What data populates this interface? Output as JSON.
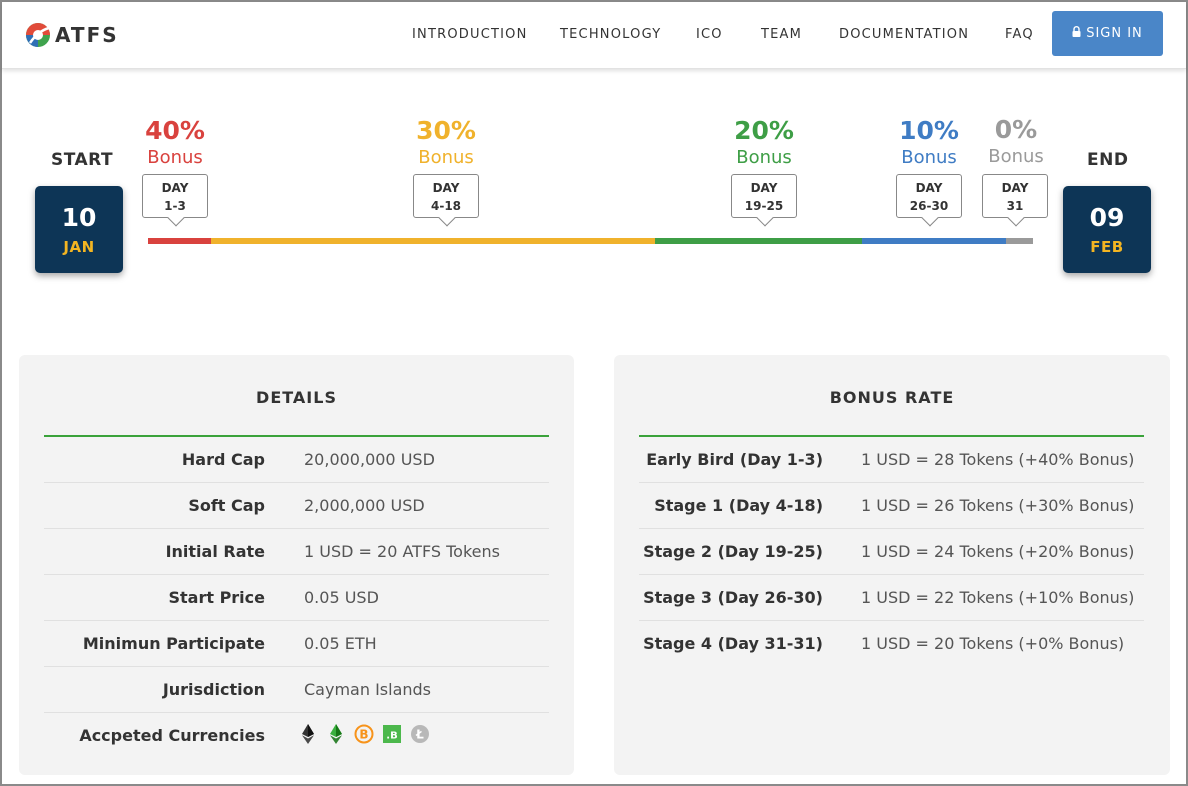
{
  "header": {
    "logo_text": "ATFS",
    "nav": [
      "INTRODUCTION",
      "TECHNOLOGY",
      "ICO",
      "TEAM",
      "DOCUMENTATION",
      "FAQ"
    ],
    "signin_label": "SIGN IN"
  },
  "timeline": {
    "start_label": "START",
    "end_label": "END",
    "start": {
      "day": "10",
      "month": "JAN"
    },
    "end": {
      "day": "09",
      "month": "FEB"
    },
    "stages": [
      {
        "pct": "40%",
        "word": "Bonus",
        "day_line1": "DAY",
        "day_line2": "1-3",
        "color": "#d9423e"
      },
      {
        "pct": "30%",
        "word": "Bonus",
        "day_line1": "DAY",
        "day_line2": "4-18",
        "color": "#f0b22c"
      },
      {
        "pct": "20%",
        "word": "Bonus",
        "day_line1": "DAY",
        "day_line2": "19-25",
        "color": "#3e9e46"
      },
      {
        "pct": "10%",
        "word": "Bonus",
        "day_line1": "DAY",
        "day_line2": "26-30",
        "color": "#3f7cc4"
      },
      {
        "pct": "0%",
        "word": "Bonus",
        "day_line1": "DAY",
        "day_line2": "31",
        "color": "#9a9a9a"
      }
    ]
  },
  "details": {
    "title": "DETAILS",
    "rows": [
      {
        "label": "Hard Cap",
        "value": "20,000,000 USD"
      },
      {
        "label": "Soft Cap",
        "value": "2,000,000 USD"
      },
      {
        "label": "Initial Rate",
        "value": "1 USD = 20 ATFS Tokens"
      },
      {
        "label": "Start Price",
        "value": "0.05 USD"
      },
      {
        "label": "Minimun Participate",
        "value": "0.05 ETH"
      },
      {
        "label": "Jurisdiction",
        "value": "Cayman Islands"
      },
      {
        "label": "Accpeted Currencies",
        "value": ""
      }
    ],
    "currency_icons": [
      "ethereum-icon",
      "ethereum-classic-icon",
      "bitcoin-icon",
      "bitshares-icon",
      "litecoin-icon"
    ]
  },
  "bonus_rate": {
    "title": "BONUS RATE",
    "rows": [
      {
        "label": "Early Bird (Day 1-3)",
        "value": "1 USD = 28 Tokens (+40% Bonus)"
      },
      {
        "label": "Stage 1 (Day 4-18)",
        "value": "1 USD = 26 Tokens (+30% Bonus)"
      },
      {
        "label": "Stage 2 (Day 19-25)",
        "value": "1 USD = 24 Tokens (+20% Bonus)"
      },
      {
        "label": "Stage 3 (Day 26-30)",
        "value": "1 USD = 22 Tokens (+10% Bonus)"
      },
      {
        "label": "Stage 4 (Day 31-31)",
        "value": "1 USD = 20 Tokens (+0% Bonus)"
      }
    ]
  }
}
